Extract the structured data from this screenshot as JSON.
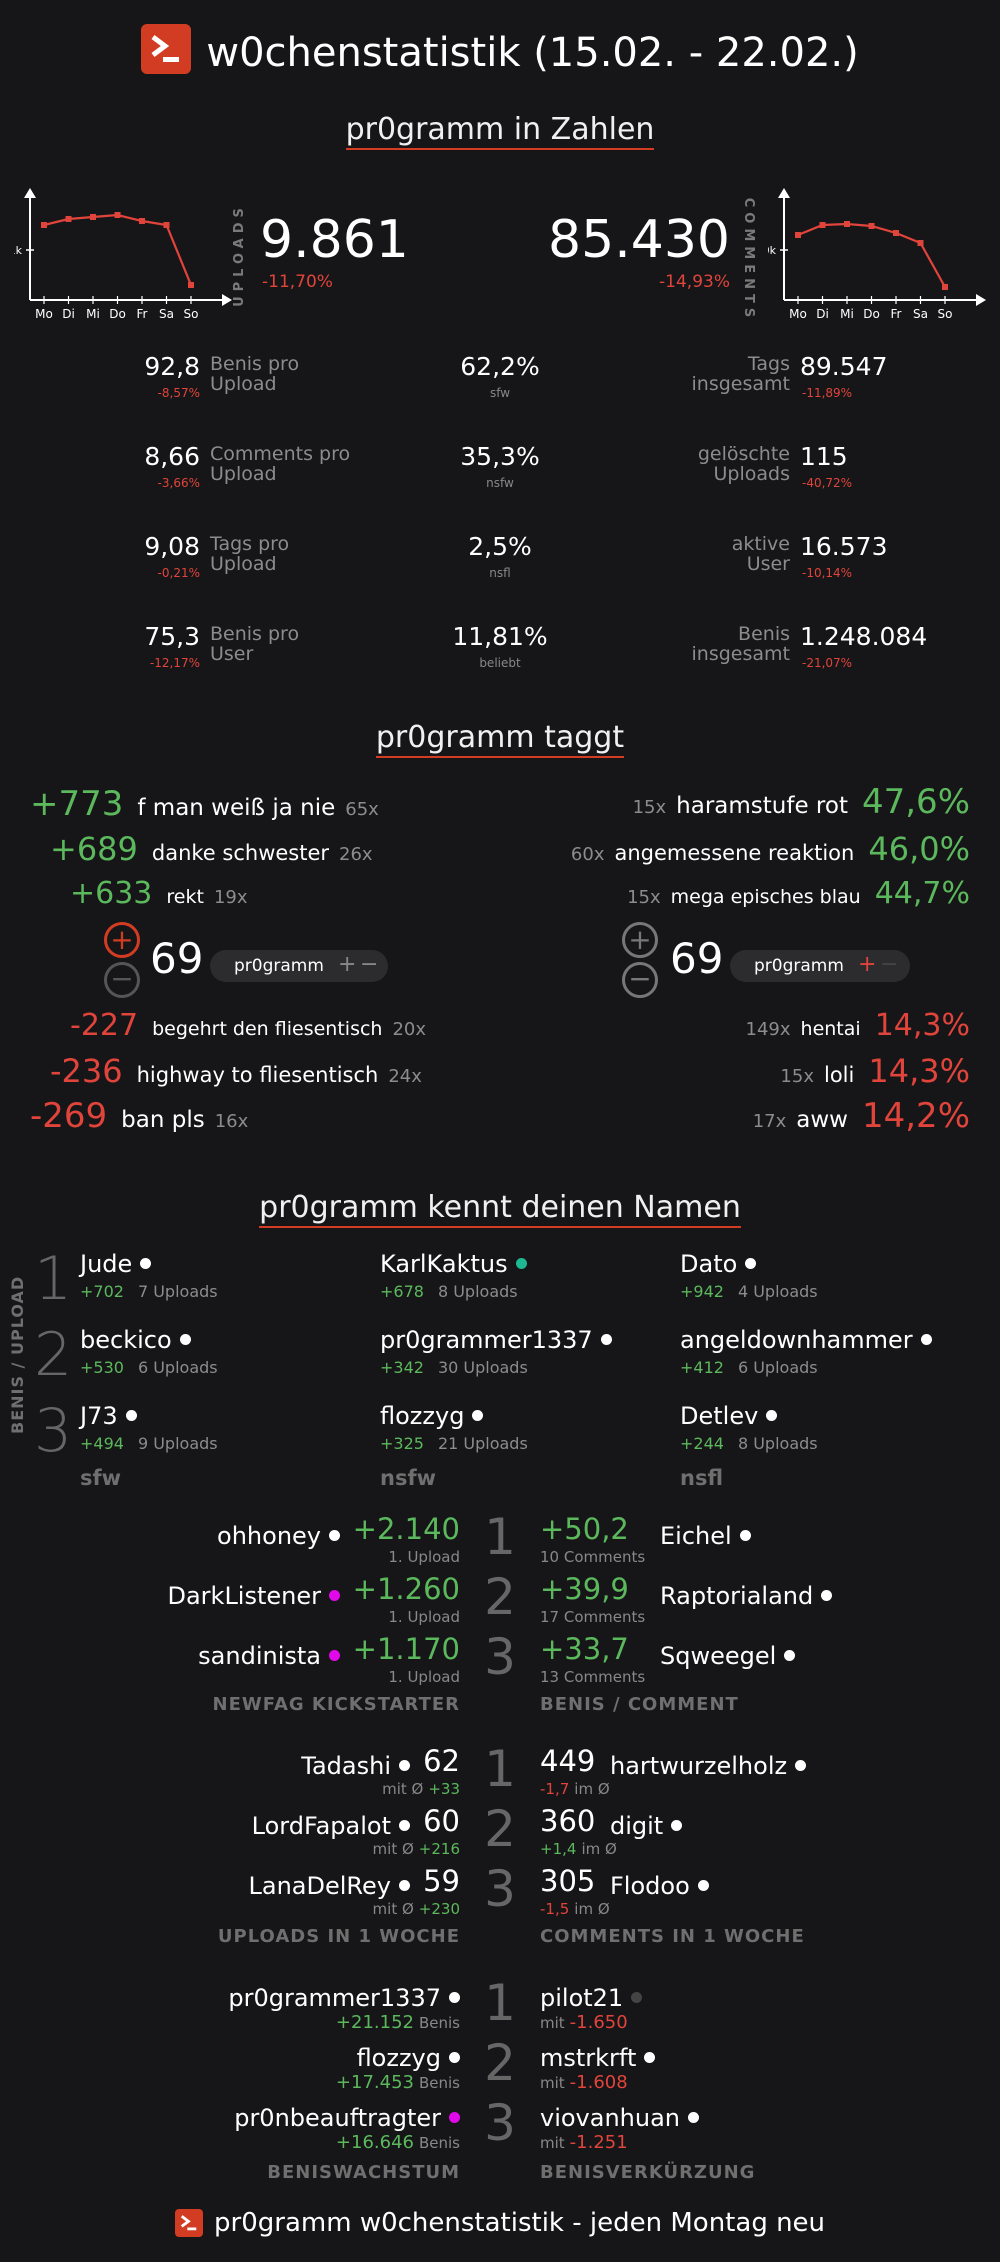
{
  "header": {
    "title": "w0chenstatistik (15.02. - 22.02.)",
    "footer": "pr0gramm w0chenstatistik - jeden Montag neu"
  },
  "section1": {
    "title": "pr0gramm in Zahlen",
    "uploads": {
      "value": "9.861",
      "delta": "-11,70%",
      "label": "UPLOADS"
    },
    "comments": {
      "value": "85.430",
      "delta": "-14,93%",
      "label": "COMMENTS"
    },
    "uploads_chart": {
      "days": [
        "Mo",
        "Di",
        "Mi",
        "Do",
        "Fr",
        "Sa",
        "So"
      ],
      "ytick": "1k",
      "line_color": "#e0443b"
    },
    "comments_chart": {
      "days": [
        "Mo",
        "Di",
        "Mi",
        "Do",
        "Fr",
        "Sa",
        "So"
      ],
      "ytick": "10k",
      "line_color": "#e0443b"
    },
    "stats_left": [
      {
        "value": "92,8",
        "delta": "-8,57%",
        "label1": "Benis pro",
        "label2": "Upload"
      },
      {
        "value": "8,66",
        "delta": "-3,66%",
        "label1": "Comments pro",
        "label2": "Upload"
      },
      {
        "value": "9,08",
        "delta": "-0,21%",
        "label1": "Tags pro",
        "label2": "Upload"
      },
      {
        "value": "75,3",
        "delta": "-12,17%",
        "label1": "Benis pro",
        "label2": "User"
      }
    ],
    "stats_mid": [
      {
        "value": "62,2%",
        "label": "sfw"
      },
      {
        "value": "35,3%",
        "label": "nsfw"
      },
      {
        "value": "2,5%",
        "label": "nsfl"
      },
      {
        "value": "11,81%",
        "label": "beliebt"
      }
    ],
    "stats_right": [
      {
        "value": "89.547",
        "delta": "-11,89%",
        "label1": "Tags",
        "label2": "insgesamt"
      },
      {
        "value": "115",
        "delta": "-40,72%",
        "label1": "gelöschte",
        "label2": "Uploads"
      },
      {
        "value": "16.573",
        "delta": "-10,14%",
        "label1": "aktive",
        "label2": "User"
      },
      {
        "value": "1.248.084",
        "delta": "-21,07%",
        "label1": "Benis",
        "label2": "insgesamt"
      }
    ]
  },
  "section2": {
    "title": "pr0gramm taggt",
    "top_left": [
      {
        "score": "+773",
        "tag": "f man weiß ja nie",
        "count": "65x"
      },
      {
        "score": "+689",
        "tag": "danke schwester",
        "count": "26x"
      },
      {
        "score": "+633",
        "tag": "rekt",
        "count": "19x"
      }
    ],
    "bottom_left": [
      {
        "score": "-227",
        "tag": "begehrt den fliesentisch",
        "count": "20x"
      },
      {
        "score": "-236",
        "tag": "highway to fliesentisch",
        "count": "24x"
      },
      {
        "score": "-269",
        "tag": "ban pls",
        "count": "16x"
      }
    ],
    "top_right": [
      {
        "count": "15x",
        "tag": "haramstufe rot",
        "pct": "47,6%"
      },
      {
        "count": "60x",
        "tag": "angemessene reaktion",
        "pct": "46,0%"
      },
      {
        "count": "15x",
        "tag": "mega episches blau",
        "pct": "44,7%"
      }
    ],
    "bottom_right": [
      {
        "count": "149x",
        "tag": "hentai",
        "pct": "14,3%"
      },
      {
        "count": "15x",
        "tag": "loli",
        "pct": "14,3%"
      },
      {
        "count": "17x",
        "tag": "aww",
        "pct": "14,2%"
      }
    ],
    "mock_left": {
      "score": "69",
      "tag": "pr0gramm",
      "plus": "+",
      "minus": "−"
    },
    "mock_right": {
      "score": "69",
      "tag": "pr0gramm",
      "plus": "+",
      "minus": "−"
    }
  },
  "section3": {
    "title": "pr0gramm kennt deinen Namen",
    "side_label": "BENIS / UPLOAD",
    "ranks": [
      "1",
      "2",
      "3"
    ],
    "categories": [
      "sfw",
      "nsfw",
      "nsfl"
    ],
    "columns": [
      [
        {
          "name": "Jude",
          "score": "+702",
          "uploads": "7 Uploads",
          "dot": "#ffffff"
        },
        {
          "name": "beckico",
          "score": "+530",
          "uploads": "6 Uploads",
          "dot": "#ffffff"
        },
        {
          "name": "J73",
          "score": "+494",
          "uploads": "9 Uploads",
          "dot": "#ffffff"
        }
      ],
      [
        {
          "name": "KarlKaktus",
          "score": "+678",
          "uploads": "8 Uploads",
          "dot": "#1db992"
        },
        {
          "name": "pr0grammer1337",
          "score": "+342",
          "uploads": "30 Uploads",
          "dot": "#ffffff"
        },
        {
          "name": "flozzyg",
          "score": "+325",
          "uploads": "21 Uploads",
          "dot": "#ffffff"
        }
      ],
      [
        {
          "name": "Dato",
          "score": "+942",
          "uploads": "4 Uploads",
          "dot": "#ffffff"
        },
        {
          "name": "angeldownhammer",
          "score": "+412",
          "uploads": "6 Uploads",
          "dot": "#ffffff"
        },
        {
          "name": "Detlev",
          "score": "+244",
          "uploads": "8 Uploads",
          "dot": "#ffffff"
        }
      ]
    ]
  },
  "section4": {
    "ranks": [
      "1",
      "2",
      "3"
    ],
    "newfag": {
      "label": "NEWFAG KICKSTARTER",
      "rows": [
        {
          "name": "ohhoney",
          "value": "+2.140",
          "sub": "1. Upload",
          "dot": "#ffffff"
        },
        {
          "name": "DarkListener",
          "value": "+1.260",
          "sub": "1. Upload",
          "dot": "#e108e9"
        },
        {
          "name": "sandinista",
          "value": "+1.170",
          "sub": "1. Upload",
          "dot": "#e108e9"
        }
      ]
    },
    "benis_comment": {
      "label": "BENIS / COMMENT",
      "rows": [
        {
          "name": "Eichel",
          "value": "+50,2",
          "sub": "10 Comments",
          "dot": "#ffffff"
        },
        {
          "name": "Raptorialand",
          "value": "+39,9",
          "sub": "17 Comments",
          "dot": "#ffffff"
        },
        {
          "name": "Sqweegel",
          "value": "+33,7",
          "sub": "13 Comments",
          "dot": "#ffffff"
        }
      ]
    },
    "uploads_week": {
      "label": "UPLOADS IN 1 WOCHE",
      "prefix": "mit Ø",
      "rows": [
        {
          "name": "Tadashi",
          "value": "62",
          "avg": "+33",
          "dot": "#ffffff"
        },
        {
          "name": "LordFapalot",
          "value": "60",
          "avg": "+216",
          "dot": "#ffffff"
        },
        {
          "name": "LanaDelRey",
          "value": "59",
          "avg": "+230",
          "dot": "#ffffff"
        }
      ]
    },
    "comments_week": {
      "label": "COMMENTS IN 1 WOCHE",
      "suffix": "im Ø",
      "rows": [
        {
          "name": "hartwurzelholz",
          "value": "449",
          "avg": "-1,7",
          "dot": "#ffffff",
          "avg_color": "#e0443b"
        },
        {
          "name": "digit",
          "value": "360",
          "avg": "+1,4",
          "dot": "#ffffff",
          "avg_color": "#5cb85c"
        },
        {
          "name": "Flodoo",
          "value": "305",
          "avg": "-1,5",
          "dot": "#ffffff",
          "avg_color": "#e0443b"
        }
      ]
    },
    "growth": {
      "label": "BENISWACHSTUM",
      "unit": "Benis",
      "rows": [
        {
          "name": "pr0grammer1337",
          "value": "+21.152",
          "dot": "#ffffff"
        },
        {
          "name": "flozzyg",
          "value": "+17.453",
          "dot": "#ffffff"
        },
        {
          "name": "pr0nbeauftragter",
          "value": "+16.646",
          "dot": "#e108e9"
        }
      ]
    },
    "shrink": {
      "label": "BENISVERKÜRZUNG",
      "prefix": "mit",
      "rows": [
        {
          "name": "pilot21",
          "value": "-1.650",
          "dot": "#444444"
        },
        {
          "name": "mstrkrft",
          "value": "-1.608",
          "dot": "#ffffff"
        },
        {
          "name": "viovanhuan",
          "value": "-1.251",
          "dot": "#ffffff"
        }
      ]
    }
  }
}
